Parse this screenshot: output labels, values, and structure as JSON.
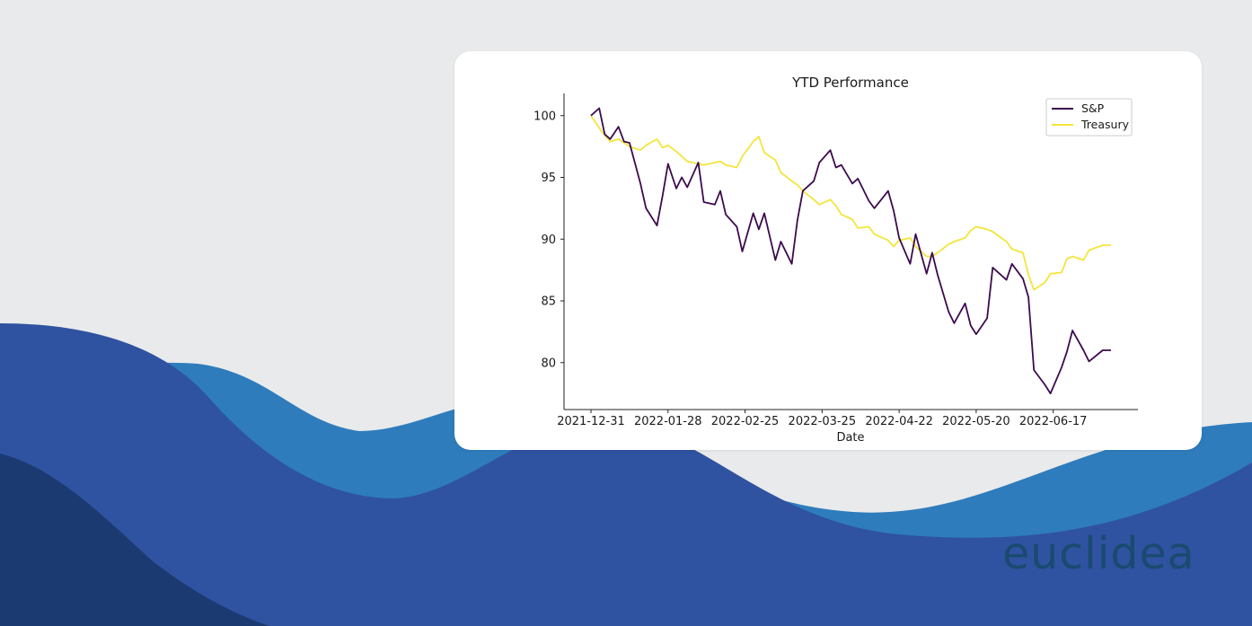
{
  "brand": {
    "name": "euclidea"
  },
  "theme": {
    "background": "#e9eaeb",
    "card": "#ffffff",
    "wave_dark": "#1a3a6e",
    "wave_mid": "#2e51a0",
    "wave_light": "#2f7cbc"
  },
  "chart_data": {
    "type": "line",
    "title": "YTD Performance",
    "xlabel": "Date",
    "ylabel": "",
    "xlim": [
      "2021-12-31",
      "2022-07-08"
    ],
    "ylim": [
      76.2,
      101.8
    ],
    "yticks": [
      80,
      85,
      90,
      95,
      100
    ],
    "xticks": [
      "2021-12-31",
      "2022-01-28",
      "2022-02-25",
      "2022-03-25",
      "2022-04-22",
      "2022-05-20",
      "2022-06-17"
    ],
    "grid": false,
    "legend_position": "top-right",
    "x": [
      "2021-12-31",
      "2022-01-03",
      "2022-01-05",
      "2022-01-07",
      "2022-01-10",
      "2022-01-12",
      "2022-01-14",
      "2022-01-18",
      "2022-01-20",
      "2022-01-24",
      "2022-01-26",
      "2022-01-28",
      "2022-01-31",
      "2022-02-02",
      "2022-02-04",
      "2022-02-08",
      "2022-02-10",
      "2022-02-14",
      "2022-02-16",
      "2022-02-18",
      "2022-02-22",
      "2022-02-24",
      "2022-02-28",
      "2022-03-02",
      "2022-03-04",
      "2022-03-08",
      "2022-03-10",
      "2022-03-14",
      "2022-03-16",
      "2022-03-18",
      "2022-03-22",
      "2022-03-24",
      "2022-03-28",
      "2022-03-30",
      "2022-04-01",
      "2022-04-05",
      "2022-04-07",
      "2022-04-11",
      "2022-04-13",
      "2022-04-18",
      "2022-04-20",
      "2022-04-22",
      "2022-04-26",
      "2022-04-28",
      "2022-05-02",
      "2022-05-04",
      "2022-05-06",
      "2022-05-10",
      "2022-05-12",
      "2022-05-16",
      "2022-05-18",
      "2022-05-20",
      "2022-05-24",
      "2022-05-26",
      "2022-05-31",
      "2022-06-02",
      "2022-06-06",
      "2022-06-08",
      "2022-06-10",
      "2022-06-14",
      "2022-06-16",
      "2022-06-20",
      "2022-06-22",
      "2022-06-24",
      "2022-06-28",
      "2022-06-30",
      "2022-07-05",
      "2022-07-08"
    ],
    "series": [
      {
        "name": "S&P",
        "color": "#3d0a4e",
        "values": [
          100.0,
          100.6,
          98.5,
          98.1,
          99.1,
          97.9,
          97.8,
          94.5,
          92.5,
          91.1,
          93.5,
          96.1,
          94.1,
          95.0,
          94.2,
          96.2,
          93.0,
          92.8,
          93.9,
          92.0,
          91.0,
          89.0,
          92.1,
          90.8,
          92.1,
          88.3,
          89.8,
          88.0,
          91.5,
          93.9,
          94.7,
          96.2,
          97.2,
          95.8,
          96.0,
          94.5,
          94.9,
          93.1,
          92.5,
          93.9,
          92.3,
          90.1,
          88.0,
          90.4,
          87.2,
          88.9,
          87.1,
          84.1,
          83.2,
          84.8,
          83.0,
          82.3,
          83.6,
          87.7,
          86.7,
          88.0,
          86.8,
          85.3,
          79.4,
          78.2,
          77.5,
          79.6,
          80.9,
          82.6,
          81.0,
          80.1,
          81.0,
          81.0
        ]
      },
      {
        "name": "Treasury",
        "color": "#f3e53c",
        "values": [
          100.0,
          99.0,
          98.4,
          97.9,
          98.1,
          97.8,
          97.5,
          97.2,
          97.6,
          98.1,
          97.4,
          97.6,
          97.1,
          96.7,
          96.3,
          96.1,
          96.0,
          96.2,
          96.3,
          96.0,
          95.8,
          96.7,
          97.9,
          98.3,
          97.0,
          96.4,
          95.4,
          94.7,
          94.4,
          93.9,
          93.2,
          92.8,
          93.2,
          92.7,
          92.0,
          91.6,
          90.9,
          91.0,
          90.4,
          89.9,
          89.4,
          89.9,
          90.1,
          89.4,
          88.6,
          88.6,
          88.9,
          89.6,
          89.8,
          90.1,
          90.7,
          91.0,
          90.8,
          90.6,
          89.8,
          89.2,
          88.9,
          87.1,
          85.9,
          86.5,
          87.2,
          87.3,
          88.4,
          88.6,
          88.3,
          89.1,
          89.5,
          89.5
        ]
      }
    ]
  }
}
